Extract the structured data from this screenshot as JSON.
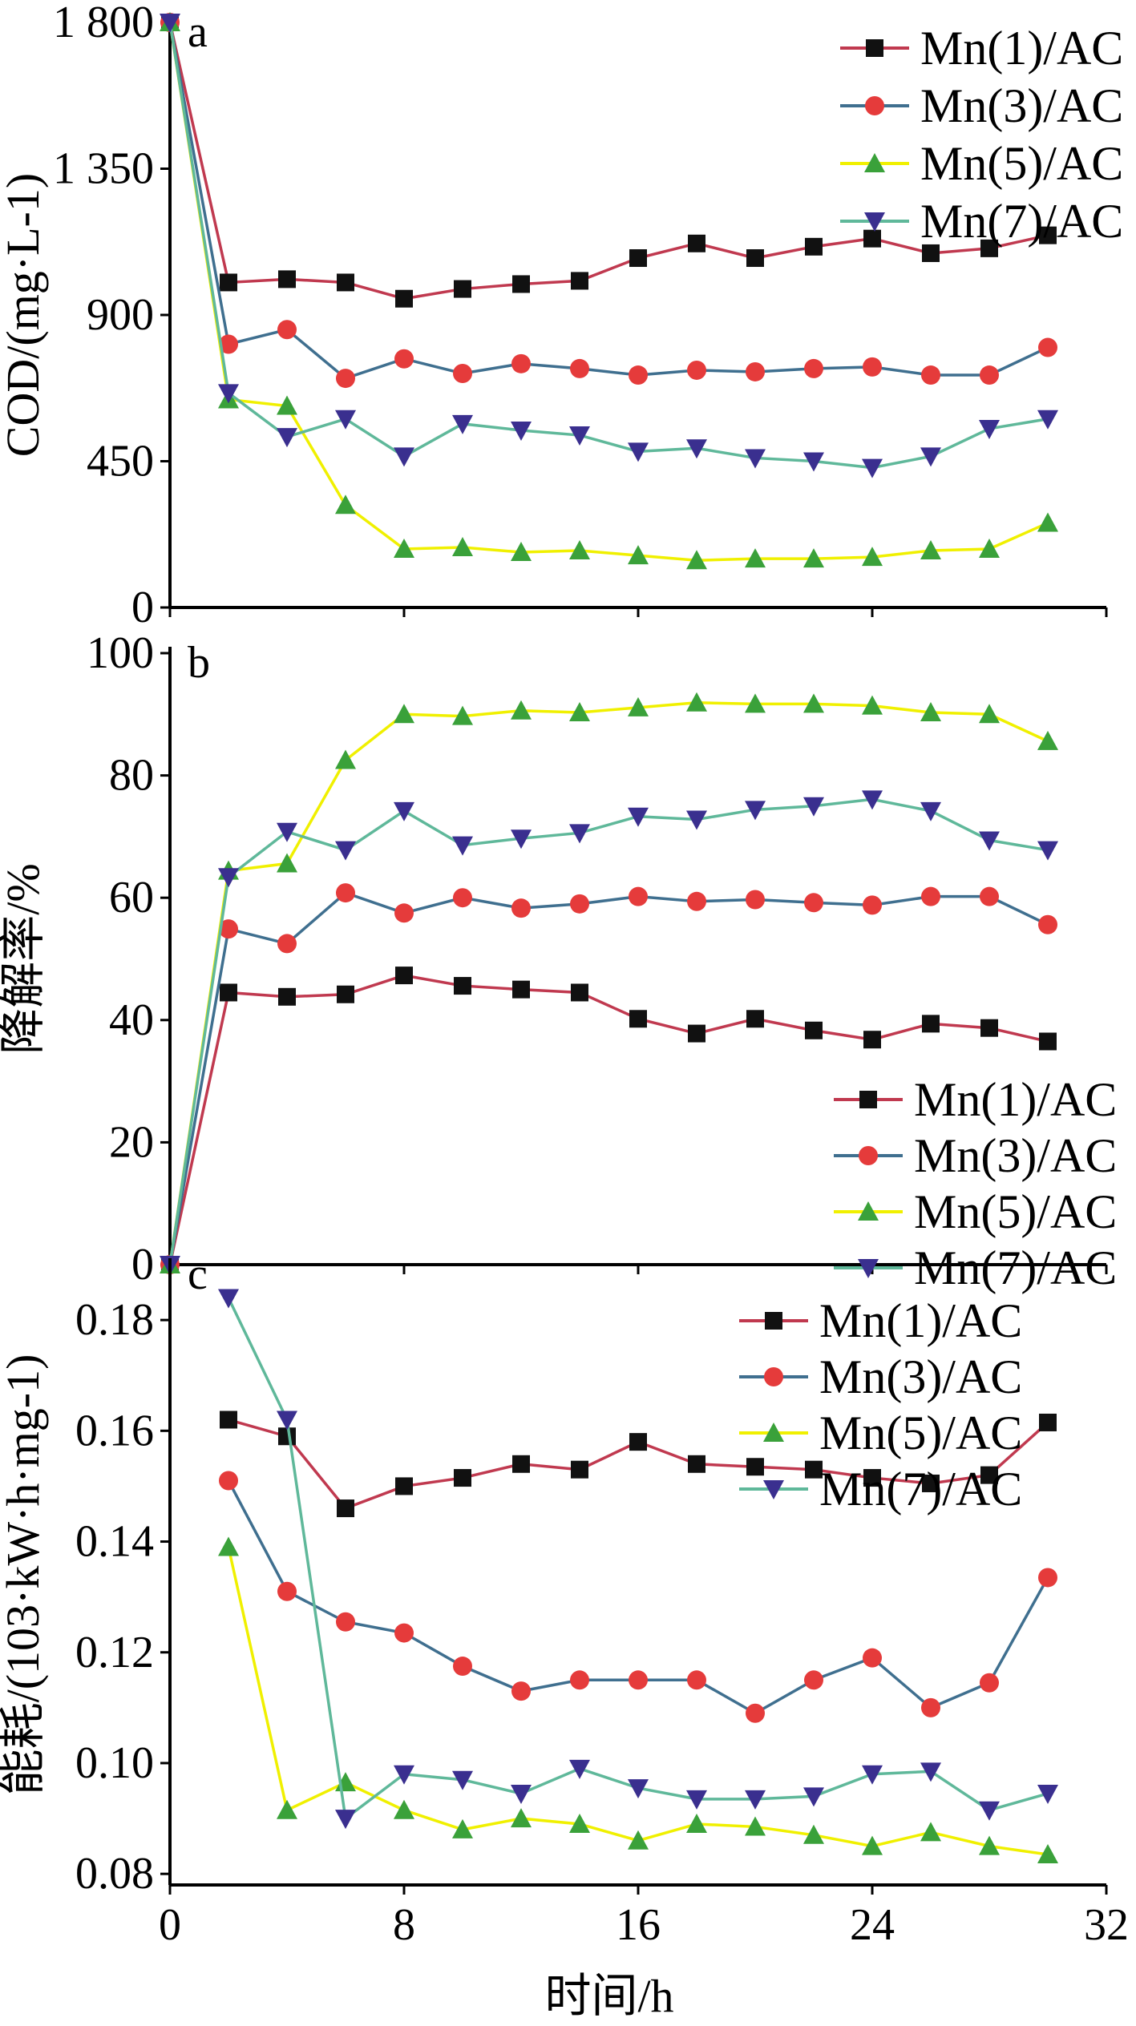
{
  "colors": {
    "Mn(1)/AC": {
      "line": "#c0394f",
      "marker": "#111111",
      "shape": "square"
    },
    "Mn(3)/AC": {
      "line": "#3f6f8f",
      "marker": "#e53b3b",
      "shape": "circle"
    },
    "Mn(5)/AC": {
      "line": "#f0f000",
      "marker": "#3aa13a",
      "shape": "triangle-up"
    },
    "Mn(7)/AC": {
      "line": "#5fb89a",
      "marker": "#3a2f8f",
      "shape": "triangle-down"
    }
  },
  "shared_x": {
    "label": "时间/h",
    "ticks": [
      "0",
      "8",
      "16",
      "24",
      "32"
    ],
    "xlim": [
      0,
      32
    ]
  },
  "chart_data": [
    {
      "type": "line",
      "panel_label": "a",
      "ylabel": "COD/(mg·L-1)",
      "ylim": [
        0,
        1800
      ],
      "yticks": [
        {
          "value": 0,
          "label": "0"
        },
        {
          "value": 450,
          "label": "450"
        },
        {
          "value": 900,
          "label": "900"
        },
        {
          "value": 1350,
          "label": "1 350"
        },
        {
          "value": 1800,
          "label": "1 800"
        }
      ],
      "legend": "top-right",
      "x": [
        0,
        2,
        4,
        6,
        8,
        10,
        12,
        14,
        16,
        18,
        20,
        22,
        24,
        26,
        28,
        30
      ],
      "series": [
        {
          "name": "Mn(1)/AC",
          "values": [
            1800,
            1000,
            1010,
            1000,
            950,
            980,
            995,
            1005,
            1075,
            1120,
            1075,
            1110,
            1135,
            1090,
            1105,
            1145
          ]
        },
        {
          "name": "Mn(3)/AC",
          "values": [
            1800,
            810,
            855,
            705,
            765,
            720,
            750,
            735,
            715,
            730,
            725,
            735,
            740,
            715,
            715,
            800
          ]
        },
        {
          "name": "Mn(5)/AC",
          "values": [
            1800,
            640,
            620,
            315,
            180,
            185,
            170,
            175,
            160,
            145,
            150,
            150,
            155,
            175,
            180,
            260
          ]
        },
        {
          "name": "Mn(7)/AC",
          "values": [
            1800,
            660,
            525,
            580,
            465,
            565,
            545,
            530,
            480,
            490,
            460,
            450,
            430,
            465,
            550,
            580
          ]
        }
      ]
    },
    {
      "type": "line",
      "panel_label": "b",
      "ylabel": "降解率/%",
      "ylim": [
        0,
        100
      ],
      "yticks": [
        {
          "value": 0,
          "label": "0"
        },
        {
          "value": 20,
          "label": "20"
        },
        {
          "value": 40,
          "label": "40"
        },
        {
          "value": 60,
          "label": "60"
        },
        {
          "value": 80,
          "label": "80"
        },
        {
          "value": 100,
          "label": "100"
        }
      ],
      "legend": "bottom-right",
      "x": [
        0,
        2,
        4,
        6,
        8,
        10,
        12,
        14,
        16,
        18,
        20,
        22,
        24,
        26,
        28,
        30
      ],
      "series": [
        {
          "name": "Mn(1)/AC",
          "values": [
            0,
            44.5,
            43.8,
            44.2,
            47.3,
            45.6,
            45,
            44.5,
            40.2,
            37.8,
            40.2,
            38.3,
            36.8,
            39.4,
            38.7,
            36.5
          ]
        },
        {
          "name": "Mn(3)/AC",
          "values": [
            0,
            54.9,
            52.5,
            60.8,
            57.5,
            60,
            58.3,
            59,
            60.2,
            59.4,
            59.7,
            59.2,
            58.8,
            60.2,
            60.2,
            55.6
          ]
        },
        {
          "name": "Mn(5)/AC",
          "values": [
            0,
            64.4,
            65.6,
            82.5,
            90,
            89.7,
            90.6,
            90.3,
            91.1,
            91.9,
            91.7,
            91.7,
            91.4,
            90.3,
            90,
            85.6
          ]
        },
        {
          "name": "Mn(7)/AC",
          "values": [
            0,
            63.4,
            70.8,
            67.8,
            74.2,
            68.6,
            69.7,
            70.6,
            73.3,
            72.8,
            74.4,
            75,
            76.1,
            74.2,
            69.4,
            67.8
          ]
        }
      ]
    },
    {
      "type": "line",
      "panel_label": "c",
      "ylabel": "能耗/(103·kW·h·mg-1)",
      "ylim": [
        0.078,
        0.19
      ],
      "yticks": [
        {
          "value": 0.08,
          "label": "0.08"
        },
        {
          "value": 0.1,
          "label": "0.10"
        },
        {
          "value": 0.12,
          "label": "0.12"
        },
        {
          "value": 0.14,
          "label": "0.14"
        },
        {
          "value": 0.16,
          "label": "0.16"
        },
        {
          "value": 0.18,
          "label": "0.18"
        }
      ],
      "legend": "top-right",
      "x": [
        2,
        4,
        6,
        8,
        10,
        12,
        14,
        16,
        18,
        20,
        22,
        24,
        26,
        28,
        30
      ],
      "series": [
        {
          "name": "Mn(1)/AC",
          "values": [
            0.162,
            0.159,
            0.146,
            0.15,
            0.1515,
            0.154,
            0.153,
            0.158,
            0.154,
            0.1535,
            0.153,
            0.1515,
            0.1505,
            0.152,
            0.1615
          ]
        },
        {
          "name": "Mn(3)/AC",
          "values": [
            0.151,
            0.131,
            0.1255,
            0.1235,
            0.1175,
            0.113,
            0.115,
            0.115,
            0.115,
            0.109,
            0.115,
            0.119,
            0.11,
            0.1145,
            0.1335
          ]
        },
        {
          "name": "Mn(5)/AC",
          "values": [
            0.139,
            0.0915,
            0.0965,
            0.0915,
            0.088,
            0.09,
            0.089,
            0.086,
            0.089,
            0.0885,
            0.087,
            0.085,
            0.0875,
            0.085,
            0.0835
          ]
        },
        {
          "name": "Mn(7)/AC",
          "values": [
            0.184,
            0.162,
            0.09,
            0.098,
            0.097,
            0.0945,
            0.099,
            0.0955,
            0.0935,
            0.0935,
            0.094,
            0.098,
            0.0985,
            0.0915,
            0.0945
          ]
        }
      ]
    }
  ]
}
